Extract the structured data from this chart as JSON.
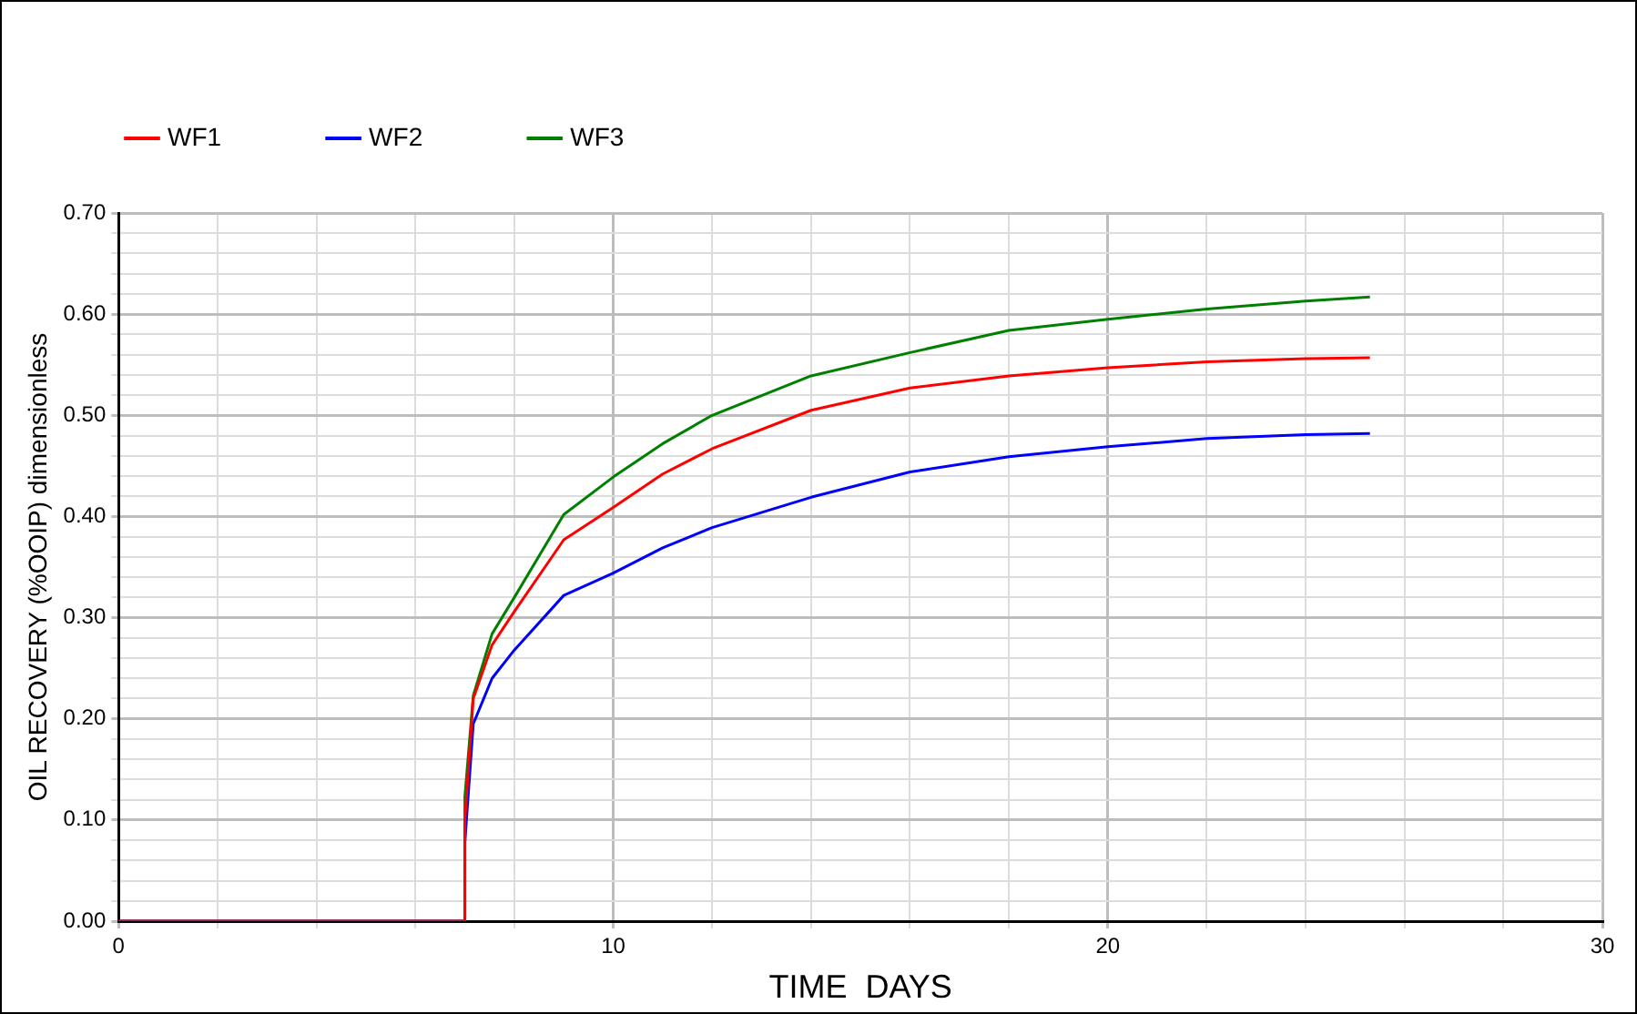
{
  "chart_data": {
    "type": "line",
    "xlabel": "TIME  DAYS",
    "ylabel": "OIL RECOVERY (%OOIP) dimensionless",
    "xlim": [
      0,
      30
    ],
    "ylim": [
      0,
      0.7
    ],
    "xticks": [
      0,
      {
        "value": 2,
        "label": null
      },
      {
        "value": 4,
        "label": null
      },
      {
        "value": 6,
        "label": null
      },
      {
        "value": 8,
        "label": null
      },
      10,
      {
        "value": 12,
        "label": null
      },
      {
        "value": 14,
        "label": null
      },
      {
        "value": 16,
        "label": null
      },
      {
        "value": 18,
        "label": null
      },
      20,
      {
        "value": 22,
        "label": null
      },
      {
        "value": 24,
        "label": null
      },
      {
        "value": 26,
        "label": null
      },
      {
        "value": 28,
        "label": null
      },
      30
    ],
    "yticks": [
      {
        "value": 0,
        "label": "0.00"
      },
      {
        "value": 0.02,
        "label": null
      },
      {
        "value": 0.04,
        "label": null
      },
      {
        "value": 0.06,
        "label": null
      },
      {
        "value": 0.08,
        "label": null
      },
      {
        "value": 0.1,
        "label": "0.10"
      },
      {
        "value": 0.12,
        "label": null
      },
      {
        "value": 0.14,
        "label": null
      },
      {
        "value": 0.16,
        "label": null
      },
      {
        "value": 0.18,
        "label": null
      },
      {
        "value": 0.2,
        "label": "0.20"
      },
      {
        "value": 0.22,
        "label": null
      },
      {
        "value": 0.24,
        "label": null
      },
      {
        "value": 0.26,
        "label": null
      },
      {
        "value": 0.28,
        "label": null
      },
      {
        "value": 0.3,
        "label": "0.30"
      },
      {
        "value": 0.32,
        "label": null
      },
      {
        "value": 0.34,
        "label": null
      },
      {
        "value": 0.36,
        "label": null
      },
      {
        "value": 0.38,
        "label": null
      },
      {
        "value": 0.4,
        "label": "0.40"
      },
      {
        "value": 0.42,
        "label": null
      },
      {
        "value": 0.44,
        "label": null
      },
      {
        "value": 0.46,
        "label": null
      },
      {
        "value": 0.48,
        "label": null
      },
      {
        "value": 0.5,
        "label": "0.50"
      },
      {
        "value": 0.52,
        "label": null
      },
      {
        "value": 0.54,
        "label": null
      },
      {
        "value": 0.56,
        "label": null
      },
      {
        "value": 0.58,
        "label": null
      },
      {
        "value": 0.6,
        "label": "0.60"
      },
      {
        "value": 0.62,
        "label": null
      },
      {
        "value": 0.64,
        "label": null
      },
      {
        "value": 0.66,
        "label": null
      },
      {
        "value": 0.68,
        "label": null
      },
      {
        "value": 0.7,
        "label": "0.70"
      }
    ],
    "grid": true,
    "legend": "top",
    "marker": "none",
    "line_style": "solid",
    "x": [
      0,
      7,
      7,
      7.17,
      7.55,
      8,
      9,
      10,
      11,
      12,
      14,
      16,
      18,
      20,
      22,
      24,
      25.3
    ],
    "series": [
      {
        "name": "WF1",
        "color": "#ff0000",
        "values": [
          0,
          0,
          0.1,
          0.22,
          0.273,
          0.306,
          0.377,
          0.409,
          0.442,
          0.467,
          0.505,
          0.527,
          0.539,
          0.547,
          0.553,
          0.556,
          0.557
        ]
      },
      {
        "name": "WF2",
        "color": "#0000ff",
        "values": [
          0,
          0,
          0.078,
          0.195,
          0.24,
          0.268,
          0.322,
          0.344,
          0.369,
          0.389,
          0.419,
          0.444,
          0.459,
          0.469,
          0.477,
          0.481,
          0.482
        ]
      },
      {
        "name": "WF3",
        "color": "#008000",
        "values": [
          0,
          0,
          0.123,
          0.223,
          0.284,
          0.32,
          0.402,
          0.439,
          0.472,
          0.5,
          0.539,
          0.562,
          0.584,
          0.595,
          0.605,
          0.613,
          0.617
        ]
      }
    ]
  }
}
